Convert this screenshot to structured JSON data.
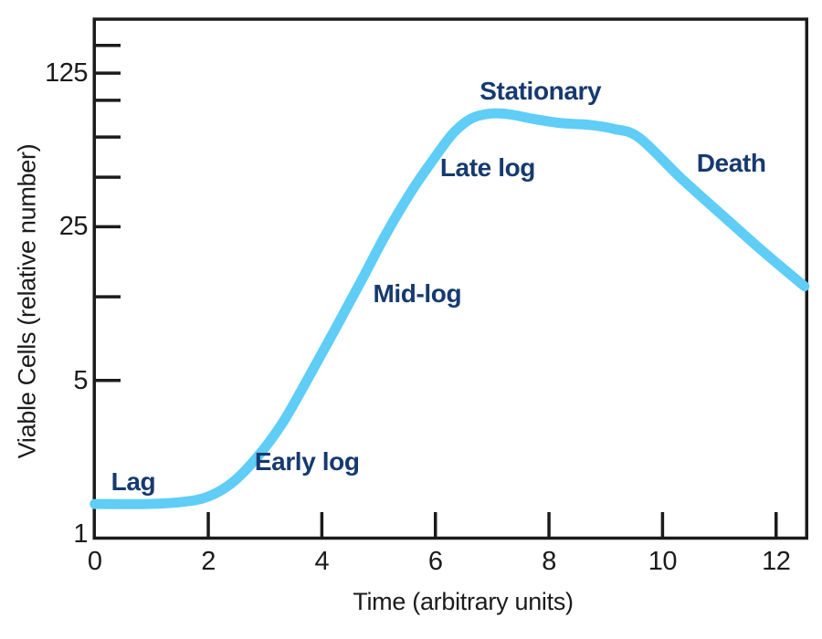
{
  "figure": {
    "background_color": "#ffffff"
  },
  "colors": {
    "curve_blue": "#5fcdf6",
    "label_navy": "#163a70",
    "axis_black": "#1b1b1b"
  },
  "chart_data": {
    "type": "line",
    "title": "",
    "xlabel": "Time (arbitrary units)",
    "ylabel": "Viable Cells (relative number)",
    "grid": false,
    "legend": false,
    "x_axis": {
      "min": 0,
      "max": 12.53,
      "ticks": [
        {
          "t": 0,
          "label": "0",
          "mark": false
        },
        {
          "t": 2,
          "label": "2",
          "mark": true
        },
        {
          "t": 4,
          "label": "4",
          "mark": true
        },
        {
          "t": 6,
          "label": "6",
          "mark": true
        },
        {
          "t": 8,
          "label": "8",
          "mark": true
        },
        {
          "t": 10,
          "label": "10",
          "mark": true
        },
        {
          "t": 12,
          "label": "12",
          "mark": true
        }
      ]
    },
    "y_axis": {
      "scale": "log",
      "log_base": 5,
      "min": 1,
      "max": 220,
      "ticks": [
        {
          "v": 167,
          "label": "",
          "mark": true
        },
        {
          "v": 125,
          "label": "125",
          "mark": true
        },
        {
          "v": 94,
          "label": "",
          "mark": true
        },
        {
          "v": 64,
          "label": "",
          "mark": true
        },
        {
          "v": 42,
          "label": "",
          "mark": true
        },
        {
          "v": 25,
          "label": "25",
          "mark": true
        },
        {
          "v": 12,
          "label": "",
          "mark": true
        },
        {
          "v": 5,
          "label": "5",
          "mark": true
        },
        {
          "v": 1,
          "label": "1",
          "mark": false
        }
      ]
    },
    "series": [
      {
        "name": "Viable cells",
        "color": "#5fcdf6",
        "points": [
          [
            0,
            1.37
          ],
          [
            0.91,
            1.37
          ],
          [
            1.55,
            1.4
          ],
          [
            2.0,
            1.48
          ],
          [
            2.43,
            1.72
          ],
          [
            2.87,
            2.25
          ],
          [
            3.32,
            3.24
          ],
          [
            3.77,
            5.18
          ],
          [
            4.22,
            8.42
          ],
          [
            4.67,
            13.8
          ],
          [
            5.12,
            22.9
          ],
          [
            5.57,
            36.0
          ],
          [
            5.97,
            50.9
          ],
          [
            6.33,
            67.3
          ],
          [
            6.65,
            78.1
          ],
          [
            6.99,
            81.9
          ],
          [
            7.31,
            81.1
          ],
          [
            7.74,
            77.3
          ],
          [
            8.22,
            74.0
          ],
          [
            8.71,
            72.7
          ],
          [
            9.14,
            69.7
          ],
          [
            9.59,
            63.5
          ],
          [
            10.32,
            41.7
          ],
          [
            11.04,
            28.4
          ],
          [
            11.76,
            19.4
          ],
          [
            12.5,
            13.4
          ]
        ]
      }
    ],
    "annotations": [
      {
        "label": "Lag",
        "t": 0.68,
        "v": 1.72
      },
      {
        "label": "Early log",
        "t": 3.74,
        "v": 2.13
      },
      {
        "label": "Mid-log",
        "t": 5.68,
        "v": 12.4
      },
      {
        "label": "Late log",
        "t": 6.92,
        "v": 46.4
      },
      {
        "label": "Stationary",
        "t": 7.85,
        "v": 103
      },
      {
        "label": "Death",
        "t": 11.21,
        "v": 48.4
      }
    ]
  }
}
